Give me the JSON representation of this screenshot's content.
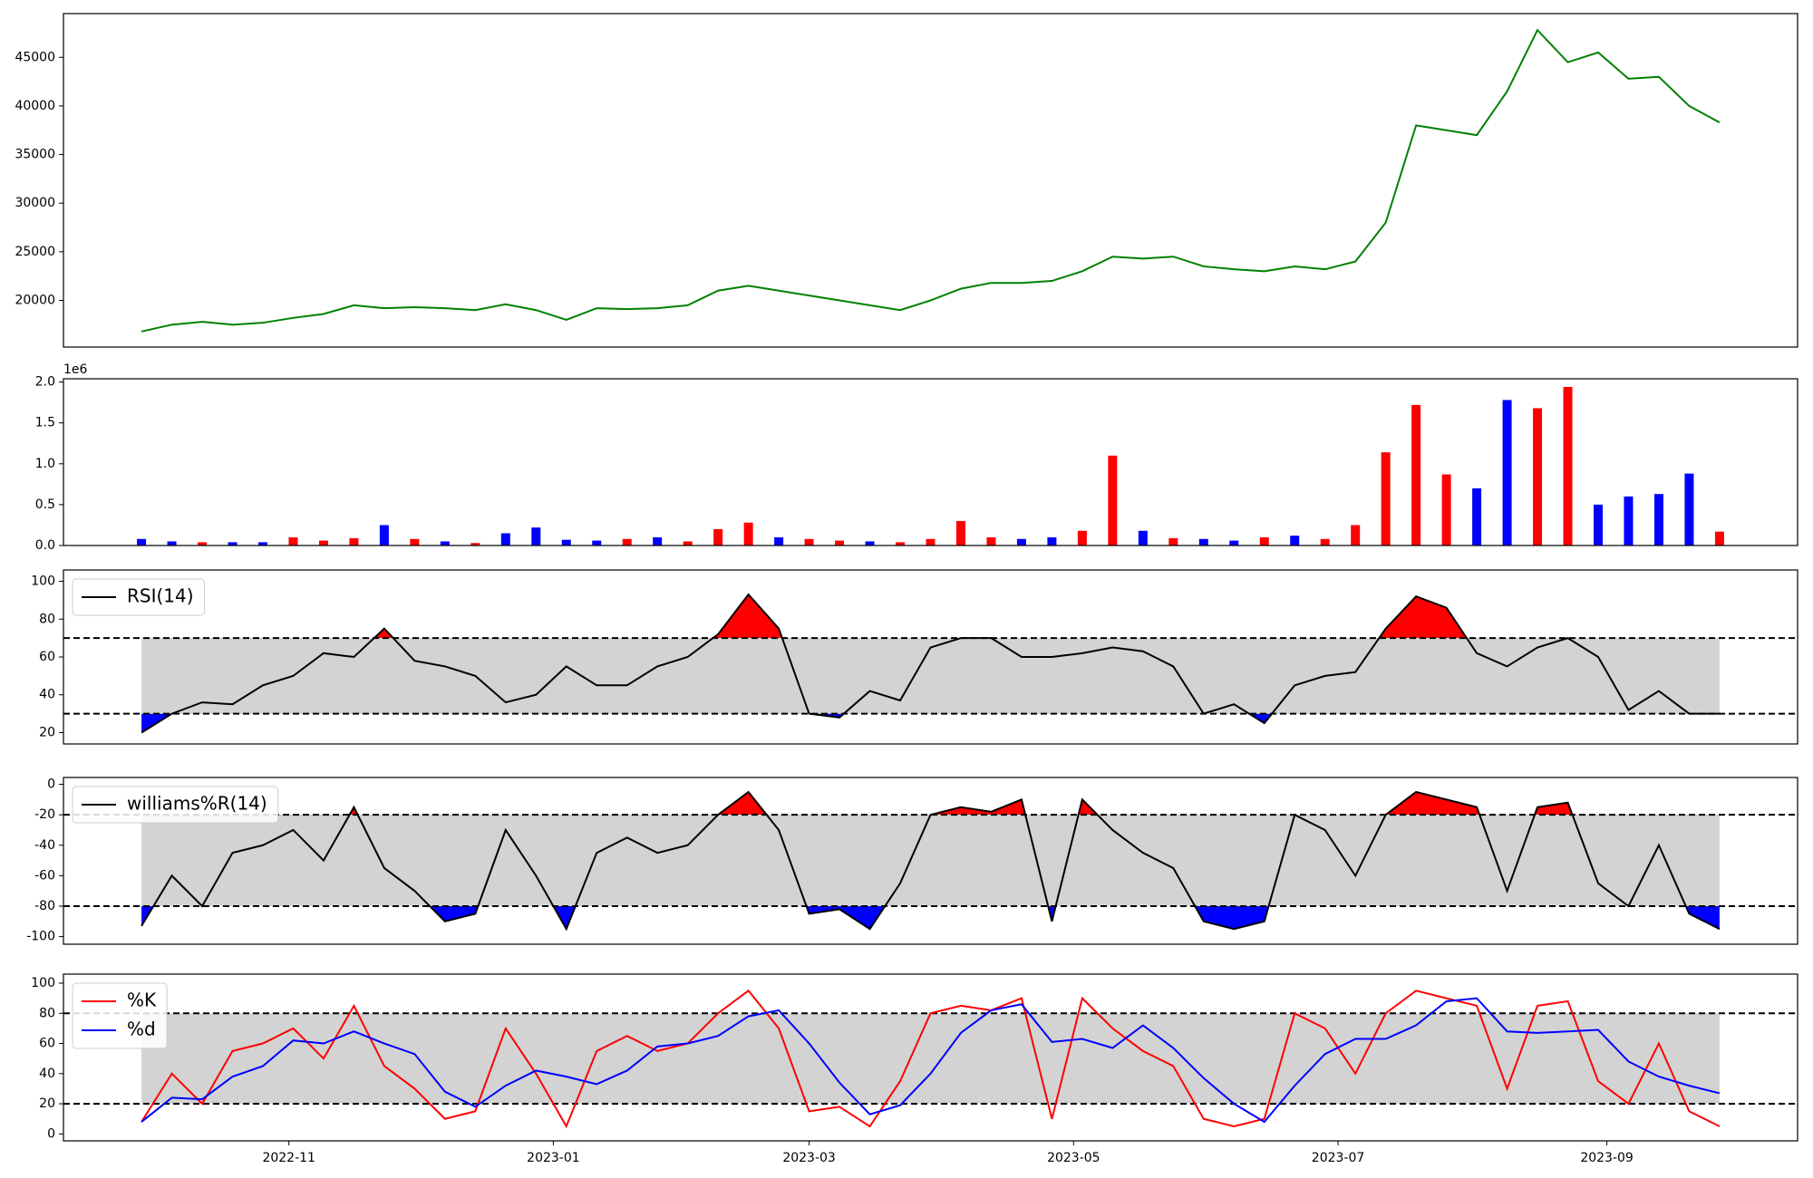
{
  "chart_data": [
    {
      "type": "line",
      "x": [
        19263,
        19270,
        19277,
        19284,
        19291,
        19298,
        19305,
        19312,
        19319,
        19326,
        19333,
        19340,
        19347,
        19354,
        19361,
        19368,
        19375,
        19382,
        19389,
        19396,
        19403,
        19410,
        19417,
        19424,
        19431,
        19438,
        19445,
        19452,
        19459,
        19466,
        19473,
        19480,
        19487,
        19494,
        19501,
        19508,
        19515,
        19522,
        19529,
        19536,
        19543,
        19550,
        19557,
        19564,
        19571,
        19578,
        19585,
        19592,
        19599,
        19606,
        19613,
        19620,
        19627
      ],
      "series": [
        {
          "color": "#008000",
          "values": [
            16800,
            17500,
            17800,
            17500,
            17700,
            18200,
            18600,
            19500,
            19200,
            19300,
            19200,
            19000,
            19600,
            19000,
            18000,
            19200,
            19100,
            19200,
            19500,
            21000,
            21500,
            21000,
            20500,
            20000,
            19500,
            19000,
            20000,
            21200,
            21800,
            21800,
            22000,
            23000,
            24500,
            24300,
            24500,
            23500,
            23200,
            23000,
            23500,
            23200,
            24000,
            28000,
            38000,
            37500,
            37000,
            41500,
            47800,
            44500,
            45500,
            42800,
            43000,
            40000,
            38300
          ]
        }
      ],
      "xlim": [
        19245,
        19645
      ],
      "ylim": [
        15200,
        49500
      ],
      "yticks": [
        20000,
        25000,
        30000,
        35000,
        40000,
        45000
      ]
    },
    {
      "type": "bar",
      "x": [
        19263,
        19270,
        19277,
        19284,
        19291,
        19298,
        19305,
        19312,
        19319,
        19326,
        19333,
        19340,
        19347,
        19354,
        19361,
        19368,
        19375,
        19382,
        19389,
        19396,
        19403,
        19410,
        19417,
        19424,
        19431,
        19438,
        19445,
        19452,
        19459,
        19466,
        19473,
        19480,
        19487,
        19494,
        19501,
        19508,
        19515,
        19522,
        19529,
        19536,
        19543,
        19550,
        19557,
        19564,
        19571,
        19578,
        19585,
        19592,
        19599,
        19606,
        19613,
        19620,
        19627
      ],
      "series": [
        {
          "values": [
            80000,
            50000,
            40000,
            40000,
            40000,
            100000,
            60000,
            90000,
            250000,
            80000,
            50000,
            30000,
            150000,
            220000,
            70000,
            60000,
            80000,
            100000,
            50000,
            200000,
            280000,
            100000,
            80000,
            60000,
            50000,
            40000,
            80000,
            300000,
            100000,
            80000,
            100000,
            180000,
            1100000,
            180000,
            90000,
            80000,
            60000,
            100000,
            120000,
            80000,
            250000,
            1140000,
            1720000,
            870000,
            700000,
            1780000,
            1680000,
            1940000,
            500000,
            600000,
            630000,
            880000,
            170000
          ],
          "colors": [
            "#0000ff",
            "#0000ff",
            "#ff0000",
            "#0000ff",
            "#0000ff",
            "#ff0000",
            "#ff0000",
            "#ff0000",
            "#0000ff",
            "#ff0000",
            "#0000ff",
            "#ff0000",
            "#0000ff",
            "#0000ff",
            "#0000ff",
            "#0000ff",
            "#ff0000",
            "#0000ff",
            "#ff0000",
            "#ff0000",
            "#ff0000",
            "#0000ff",
            "#ff0000",
            "#ff0000",
            "#0000ff",
            "#ff0000",
            "#ff0000",
            "#ff0000",
            "#ff0000",
            "#0000ff",
            "#0000ff",
            "#ff0000",
            "#ff0000",
            "#0000ff",
            "#ff0000",
            "#0000ff",
            "#0000ff",
            "#ff0000",
            "#0000ff",
            "#ff0000",
            "#ff0000",
            "#ff0000",
            "#ff0000",
            "#ff0000",
            "#0000ff",
            "#0000ff",
            "#ff0000",
            "#ff0000",
            "#0000ff",
            "#0000ff",
            "#0000ff",
            "#0000ff",
            "#ff0000"
          ]
        }
      ],
      "xlim": [
        19245,
        19645
      ],
      "ylim": [
        0,
        2040000
      ],
      "yticks": [
        {
          "value": 0,
          "label": "0.0"
        },
        {
          "value": 500000,
          "label": "0.5"
        },
        {
          "value": 1000000,
          "label": "1.0"
        },
        {
          "value": 1500000,
          "label": "1.5"
        },
        {
          "value": 2000000,
          "label": "2.0"
        }
      ],
      "y_offset_label": "1e6"
    },
    {
      "type": "line",
      "x": [
        19263,
        19270,
        19277,
        19284,
        19291,
        19298,
        19305,
        19312,
        19319,
        19326,
        19333,
        19340,
        19347,
        19354,
        19361,
        19368,
        19375,
        19382,
        19389,
        19396,
        19403,
        19410,
        19417,
        19424,
        19431,
        19438,
        19445,
        19452,
        19459,
        19466,
        19473,
        19480,
        19487,
        19494,
        19501,
        19508,
        19515,
        19522,
        19529,
        19536,
        19543,
        19550,
        19557,
        19564,
        19571,
        19578,
        19585,
        19592,
        19599,
        19606,
        19613,
        19620,
        19627
      ],
      "series": [
        {
          "name": "RSI(14)",
          "color": "#000000",
          "values": [
            20,
            30,
            36,
            35,
            45,
            50,
            62,
            60,
            75,
            58,
            55,
            50,
            36,
            40,
            55,
            45,
            45,
            55,
            60,
            72,
            93,
            75,
            30,
            28,
            42,
            37,
            65,
            70,
            70,
            60,
            60,
            62,
            65,
            63,
            55,
            30,
            35,
            25,
            45,
            50,
            52,
            75,
            92,
            86,
            62,
            55,
            65,
            70,
            60,
            32,
            42,
            30,
            30
          ]
        }
      ],
      "xlim": [
        19245,
        19645
      ],
      "ylim": [
        14,
        106
      ],
      "yticks": [
        20,
        40,
        60,
        80,
        100
      ],
      "thresholds": [
        70,
        30
      ],
      "fill_colors": [
        "#ff0000",
        "#0000ff"
      ],
      "band_color": "#d3d3d3",
      "legend": "upper left"
    },
    {
      "type": "line",
      "x": [
        19263,
        19270,
        19277,
        19284,
        19291,
        19298,
        19305,
        19312,
        19319,
        19326,
        19333,
        19340,
        19347,
        19354,
        19361,
        19368,
        19375,
        19382,
        19389,
        19396,
        19403,
        19410,
        19417,
        19424,
        19431,
        19438,
        19445,
        19452,
        19459,
        19466,
        19473,
        19480,
        19487,
        19494,
        19501,
        19508,
        19515,
        19522,
        19529,
        19536,
        19543,
        19550,
        19557,
        19564,
        19571,
        19578,
        19585,
        19592,
        19599,
        19606,
        19613,
        19620,
        19627
      ],
      "series": [
        {
          "name": "williams%R(14)",
          "color": "#000000",
          "values": [
            -93,
            -60,
            -80,
            -45,
            -40,
            -30,
            -50,
            -15,
            -55,
            -70,
            -90,
            -85,
            -30,
            -60,
            -95,
            -45,
            -35,
            -45,
            -40,
            -20,
            -5,
            -30,
            -85,
            -82,
            -95,
            -65,
            -20,
            -15,
            -18,
            -10,
            -90,
            -10,
            -30,
            -45,
            -55,
            -90,
            -95,
            -90,
            -20,
            -30,
            -60,
            -20,
            -5,
            -10,
            -15,
            -70,
            -15,
            -12,
            -65,
            -80,
            -40,
            -85,
            -95
          ]
        }
      ],
      "xlim": [
        19245,
        19645
      ],
      "ylim": [
        -105,
        4.5
      ],
      "yticks": [
        -100,
        -80,
        -60,
        -40,
        -20,
        0
      ],
      "thresholds": [
        -20,
        -80
      ],
      "fill_colors": [
        "#ff0000",
        "#0000ff"
      ],
      "band_color": "#d3d3d3",
      "legend": "upper left"
    },
    {
      "type": "line",
      "x": [
        19263,
        19270,
        19277,
        19284,
        19291,
        19298,
        19305,
        19312,
        19319,
        19326,
        19333,
        19340,
        19347,
        19354,
        19361,
        19368,
        19375,
        19382,
        19389,
        19396,
        19403,
        19410,
        19417,
        19424,
        19431,
        19438,
        19445,
        19452,
        19459,
        19466,
        19473,
        19480,
        19487,
        19494,
        19501,
        19508,
        19515,
        19522,
        19529,
        19536,
        19543,
        19550,
        19557,
        19564,
        19571,
        19578,
        19585,
        19592,
        19599,
        19606,
        19613,
        19620,
        19627
      ],
      "series": [
        {
          "name": "%K",
          "color": "#ff0000",
          "values": [
            8,
            40,
            20,
            55,
            60,
            70,
            50,
            85,
            45,
            30,
            10,
            15,
            70,
            40,
            5,
            55,
            65,
            55,
            60,
            80,
            95,
            70,
            15,
            18,
            5,
            35,
            80,
            85,
            82,
            90,
            10,
            90,
            70,
            55,
            45,
            10,
            5,
            10,
            80,
            70,
            40,
            80,
            95,
            90,
            85,
            30,
            85,
            88,
            35,
            20,
            60,
            15,
            5
          ]
        },
        {
          "name": "%d",
          "color": "#0000ff",
          "values": [
            8,
            24,
            23,
            38,
            45,
            62,
            60,
            68,
            60,
            53,
            28,
            18,
            32,
            42,
            38,
            33,
            42,
            58,
            60,
            65,
            78,
            82,
            60,
            34,
            13,
            19,
            40,
            67,
            82,
            86,
            61,
            63,
            57,
            72,
            57,
            37,
            20,
            8,
            32,
            53,
            63,
            63,
            72,
            88,
            90,
            68,
            67,
            68,
            69,
            48,
            38,
            32,
            27
          ]
        }
      ],
      "xlim": [
        19245,
        19645
      ],
      "ylim": [
        -4.6,
        106
      ],
      "yticks": [
        0,
        20,
        40,
        60,
        80,
        100
      ],
      "xticks": [
        {
          "value": 19297,
          "label": "2022-11"
        },
        {
          "value": 19358,
          "label": "2023-01"
        },
        {
          "value": 19417,
          "label": "2023-03"
        },
        {
          "value": 19478,
          "label": "2023-05"
        },
        {
          "value": 19539,
          "label": "2023-07"
        },
        {
          "value": 19601,
          "label": "2023-09"
        }
      ],
      "thresholds": [
        80,
        20
      ],
      "band_color": "#d3d3d3",
      "legend": "upper left"
    }
  ]
}
